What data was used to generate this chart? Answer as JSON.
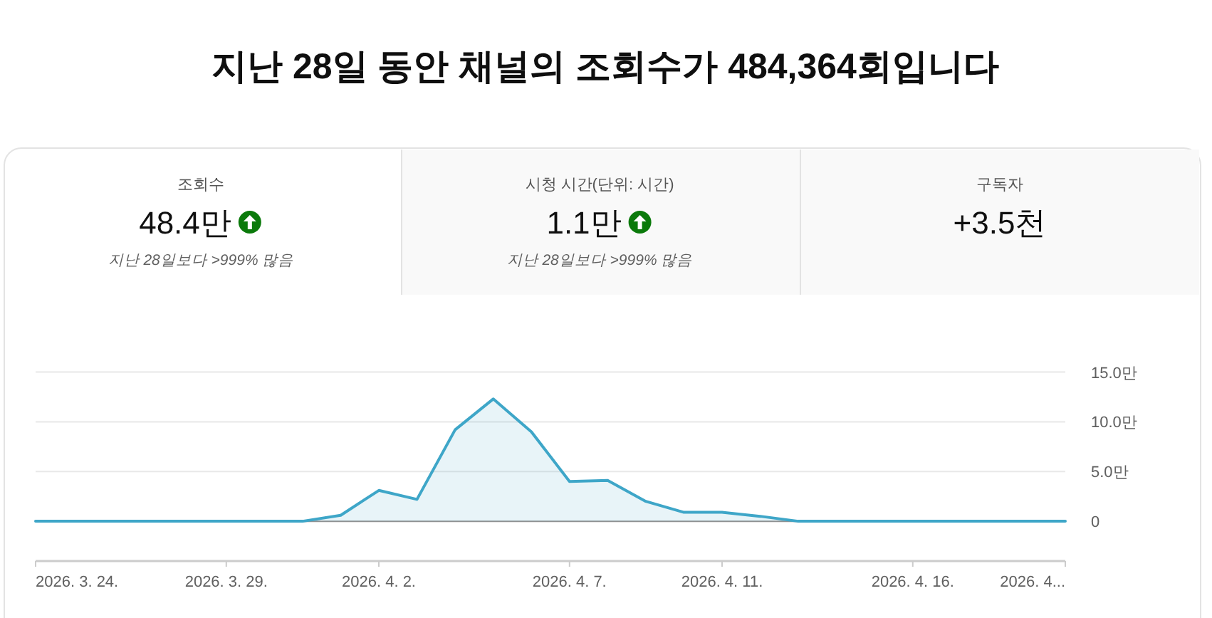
{
  "chart_data": [
    {
      "type": "other",
      "title": "지난 28일 동안 채널의 조회수가 484,364회입니다",
      "annotations": [
        "조회수",
        "48.4만",
        "지난 28일보다 >999% 많음",
        "시청 시간(단위: 시간)",
        "1.1만",
        "지난 28일보다 >999% 많음",
        "구독자",
        "+3.5천"
      ]
    },
    {
      "type": "area",
      "x": [
        "2026-03-24",
        "2026-03-25",
        "2026-03-26",
        "2026-03-27",
        "2026-03-28",
        "2026-03-29",
        "2026-03-30",
        "2026-03-31",
        "2026-04-01",
        "2026-04-02",
        "2026-04-03",
        "2026-04-04",
        "2026-04-05",
        "2026-04-06",
        "2026-04-07",
        "2026-04-08",
        "2026-04-09",
        "2026-04-10",
        "2026-04-11",
        "2026-04-12",
        "2026-04-13",
        "2026-04-14",
        "2026-04-15",
        "2026-04-16",
        "2026-04-17",
        "2026-04-18",
        "2026-04-19",
        "2026-04-20"
      ],
      "series": [
        {
          "color": "#3ea6c8",
          "values": [
            0,
            0,
            0,
            0,
            0,
            0,
            0,
            0,
            0.6,
            3.1,
            2.2,
            9.2,
            12.3,
            9.0,
            4.0,
            4.1,
            2.0,
            0.9,
            0.9,
            0.5,
            0,
            0,
            0,
            0,
            0,
            0,
            0,
            0
          ]
        }
      ],
      "xlim": [
        "2026-03-24",
        "2026-04-20"
      ],
      "xticks": [
        {
          "value": "2026-03-24",
          "label": "2026. 3. 24."
        },
        {
          "value": "2026-03-29",
          "label": "2026. 3. 29."
        },
        {
          "value": "2026-04-02",
          "label": "2026. 4. 2."
        },
        {
          "value": "2026-04-07",
          "label": "2026. 4. 7."
        },
        {
          "value": "2026-04-11",
          "label": "2026. 4. 11."
        },
        {
          "value": "2026-04-16",
          "label": "2026. 4. 16."
        },
        {
          "value": "2026-04-20",
          "label": "2026. 4..."
        }
      ],
      "ylim": [
        -4,
        15
      ],
      "yticks": [
        0,
        {
          "value": 5,
          "label": "5.0만"
        },
        {
          "value": 10,
          "label": "10.0만"
        },
        {
          "value": 15,
          "label": "15.0만"
        }
      ],
      "grid": "y"
    }
  ]
}
